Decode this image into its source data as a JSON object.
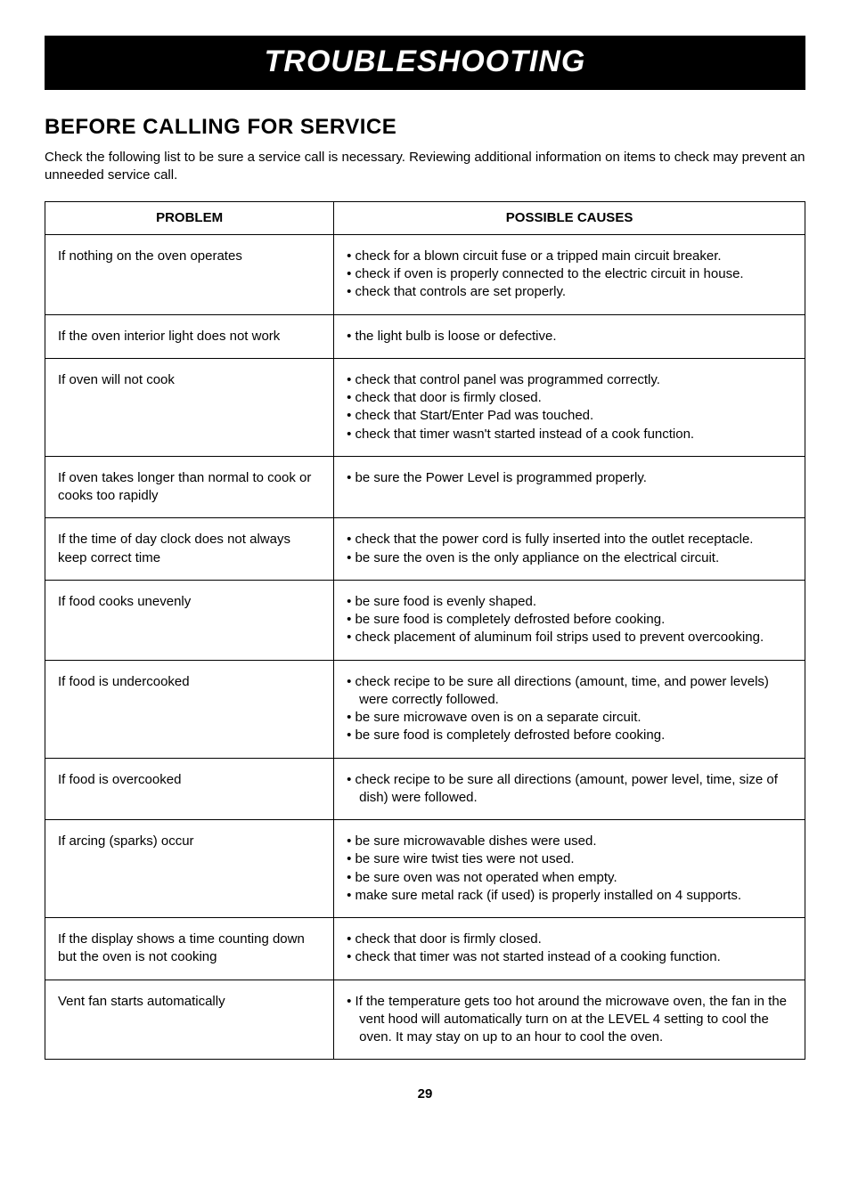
{
  "titleBand": "TROUBLESHOOTING",
  "sectionHeading": "BEFORE CALLING FOR SERVICE",
  "intro": "Check the following list to be sure a service call is necessary. Reviewing additional information on items to check may prevent an unneeded service call.",
  "table": {
    "headers": {
      "problem": "PROBLEM",
      "causes": "POSSIBLE CAUSES"
    },
    "rows": [
      {
        "problem": "If nothing on the oven operates",
        "causes": [
          "check for a blown circuit fuse or a tripped main circuit breaker.",
          "check if oven is properly connected to the electric circuit in house.",
          "check that controls are set properly."
        ]
      },
      {
        "problem": "If the oven interior light does not work",
        "causes": [
          "the light bulb is loose or defective."
        ]
      },
      {
        "problem": "If oven will not cook",
        "causes": [
          "check that control panel was programmed correctly.",
          "check that door is firmly closed.",
          "check that Start/Enter Pad was touched.",
          "check that timer wasn't started instead of a cook function."
        ]
      },
      {
        "problem": "If oven takes longer than normal to cook or cooks too rapidly",
        "causes": [
          "be sure the Power Level is programmed properly."
        ]
      },
      {
        "problem": "If the time of day clock does not always keep correct time",
        "causes": [
          "check that the power cord is fully inserted into the outlet receptacle.",
          "be sure the oven is the only appliance on the electrical circuit."
        ]
      },
      {
        "problem": "If food cooks unevenly",
        "causes": [
          "be sure food is evenly shaped.",
          "be sure food is completely defrosted before cooking.",
          "check placement of aluminum foil strips used to prevent overcooking."
        ]
      },
      {
        "problem": "If food is undercooked",
        "causes": [
          "check recipe to be sure all directions (amount, time, and power levels) were correctly followed.",
          "be sure microwave oven is on a separate circuit.",
          "be sure food is completely defrosted before cooking."
        ]
      },
      {
        "problem": "If food is overcooked",
        "causes": [
          "check recipe to be sure all directions (amount, power level, time, size of dish) were followed."
        ]
      },
      {
        "problem": "If arcing (sparks) occur",
        "causes": [
          "be sure microwavable dishes were used.",
          "be sure wire twist ties were not used.",
          "be sure oven was not operated when empty.",
          "make sure metal rack (if used) is properly installed on 4 supports."
        ]
      },
      {
        "problem": "If the display shows a time counting down but the oven is not cooking",
        "causes": [
          "check that door is firmly closed.",
          "check that timer was not started instead of a cooking function."
        ]
      },
      {
        "problem": "Vent fan starts automatically",
        "causes": [
          "If the temperature gets too hot around the microwave oven, the fan in the vent hood will automatically turn on at the LEVEL 4 setting to cool the oven. It may stay on up to an hour to cool the oven."
        ]
      }
    ]
  },
  "pageNumber": "29"
}
